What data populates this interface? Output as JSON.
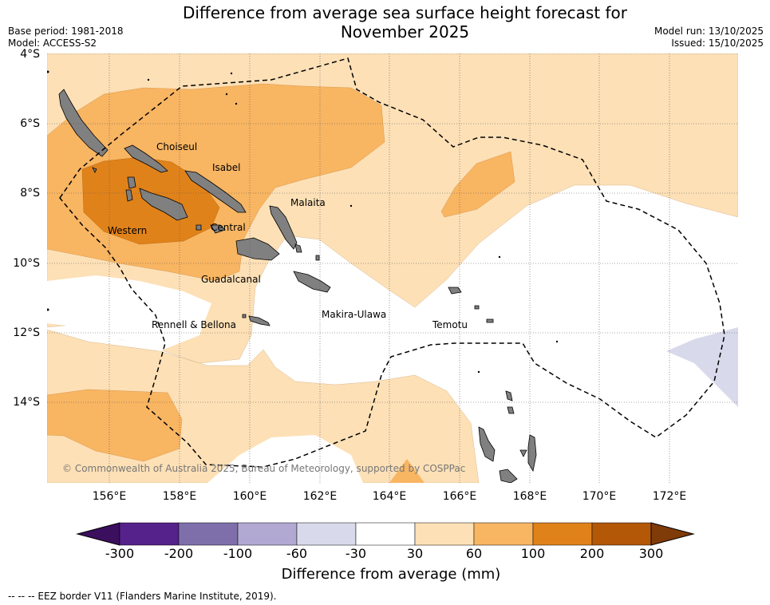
{
  "title_line1": "Difference from average sea surface height forecast for",
  "title_line2": "November 2025",
  "base_period": "Base period: 1981-2018",
  "model": "Model: ACCESS-S2",
  "model_run": "Model run: 13/10/2025",
  "issued": "Issued: 15/10/2025",
  "lat_labels": [
    "4°S",
    "6°S",
    "8°S",
    "10°S",
    "12°S",
    "14°S"
  ],
  "lon_labels": [
    "156°E",
    "158°E",
    "160°E",
    "162°E",
    "164°E",
    "166°E",
    "168°E",
    "170°E",
    "172°E"
  ],
  "places": [
    "Choiseul",
    "Isabel",
    "Malaita",
    "Western",
    "Central",
    "Guadalcanal",
    "Rennell & Bellona",
    "Makira-Ulawa",
    "Temotu"
  ],
  "copyright": "© Commonwealth of Australia 2025, Bureau of Meteorology, supported by COSPPac",
  "colorbar": {
    "ticks": [
      "-300",
      "-200",
      "-100",
      "-60",
      "-30",
      "30",
      "60",
      "100",
      "200",
      "300"
    ],
    "colors": [
      "#55218a",
      "#7e6fab",
      "#b1a9d2",
      "#d8d9eb",
      "#ffffff",
      "#fde0b6",
      "#f8b562",
      "#e0821a",
      "#b35806"
    ],
    "under_color": "#3b0f5e",
    "over_color": "#7f3b08",
    "label": "Difference from average (mm)"
  },
  "legend_eez": "--  --  -- EEZ border V11 (Flanders Marine Institute, 2019)."
}
